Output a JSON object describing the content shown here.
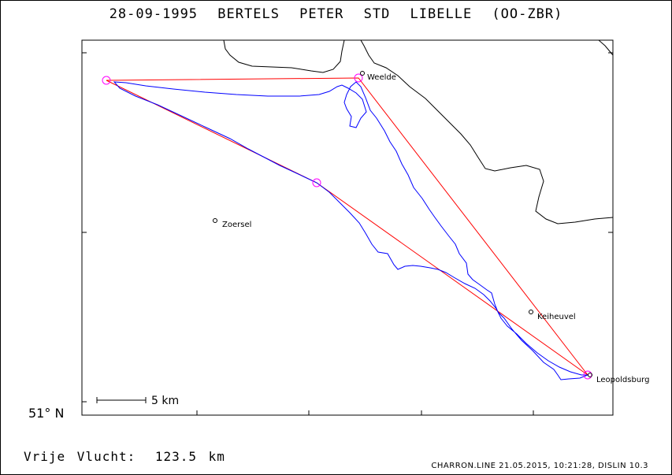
{
  "header": {
    "date": "28-09-1995",
    "pilot": "BERTELS PETER",
    "glider": "STD LIBELLE (OO-ZBR)"
  },
  "map": {
    "latitude_label": "51° N",
    "towns": [
      {
        "name": "Weelde"
      },
      {
        "name": "Zoersel"
      },
      {
        "name": "Keiheuvel"
      },
      {
        "name": "Leopoldsburg"
      }
    ],
    "scale_bar_label": "5 km",
    "colors": {
      "track": "#0000ff",
      "task": "#ff0000",
      "turnpoint": "#ff00ff",
      "border": "#000000"
    }
  },
  "footer": {
    "distance_label": "Vrije Vlucht:",
    "distance_value": "123.5 km",
    "software": "CHARRON.LINE 21.05.2015, 10:21:28, DISLIN 10.3"
  }
}
